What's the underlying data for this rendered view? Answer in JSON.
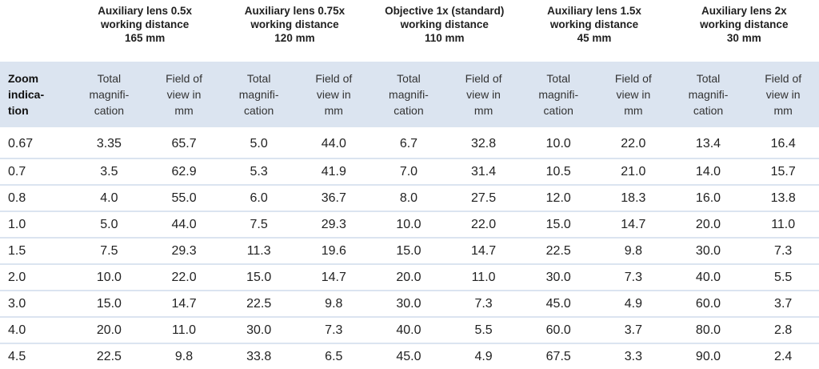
{
  "groups": [
    {
      "lines": [
        "Auxiliary lens 0.5x",
        "working distance",
        "165 mm"
      ]
    },
    {
      "lines": [
        "Auxiliary lens 0.75x",
        "working distance",
        "120 mm"
      ]
    },
    {
      "lines": [
        "Objective 1x (standard)",
        "working distance",
        "110 mm"
      ]
    },
    {
      "lines": [
        "Auxiliary lens 1.5x",
        "working distance",
        "45 mm"
      ]
    },
    {
      "lines": [
        "Auxiliary lens 2x",
        "working distance",
        "30 mm"
      ]
    }
  ],
  "zoom_header": [
    "Zoom",
    "indica-",
    "tion"
  ],
  "magnification_header": [
    "Total",
    "magnifi-",
    "cation"
  ],
  "fov_header": [
    "Field of",
    "view in",
    "mm"
  ],
  "rows": [
    [
      "0.67",
      "3.35",
      "65.7",
      "5.0",
      "44.0",
      "6.7",
      "32.8",
      "10.0",
      "22.0",
      "13.4",
      "16.4"
    ],
    [
      "0.7",
      "3.5",
      "62.9",
      "5.3",
      "41.9",
      "7.0",
      "31.4",
      "10.5",
      "21.0",
      "14.0",
      "15.7"
    ],
    [
      "0.8",
      "4.0",
      "55.0",
      "6.0",
      "36.7",
      "8.0",
      "27.5",
      "12.0",
      "18.3",
      "16.0",
      "13.8"
    ],
    [
      "1.0",
      "5.0",
      "44.0",
      "7.5",
      "29.3",
      "10.0",
      "22.0",
      "15.0",
      "14.7",
      "20.0",
      "11.0"
    ],
    [
      "1.5",
      "7.5",
      "29.3",
      "11.3",
      "19.6",
      "15.0",
      "14.7",
      "22.5",
      "9.8",
      "30.0",
      "7.3"
    ],
    [
      "2.0",
      "10.0",
      "22.0",
      "15.0",
      "14.7",
      "20.0",
      "11.0",
      "30.0",
      "7.3",
      "40.0",
      "5.5"
    ],
    [
      "3.0",
      "15.0",
      "14.7",
      "22.5",
      "9.8",
      "30.0",
      "7.3",
      "45.0",
      "4.9",
      "60.0",
      "3.7"
    ],
    [
      "4.0",
      "20.0",
      "11.0",
      "30.0",
      "7.3",
      "40.0",
      "5.5",
      "60.0",
      "3.7",
      "80.0",
      "2.8"
    ],
    [
      "4.5",
      "22.5",
      "9.8",
      "33.8",
      "6.5",
      "45.0",
      "4.9",
      "67.5",
      "3.3",
      "90.0",
      "2.4"
    ]
  ],
  "colors": {
    "header_background": "#dbe4f0",
    "row_separator": "#dbe4f0"
  }
}
